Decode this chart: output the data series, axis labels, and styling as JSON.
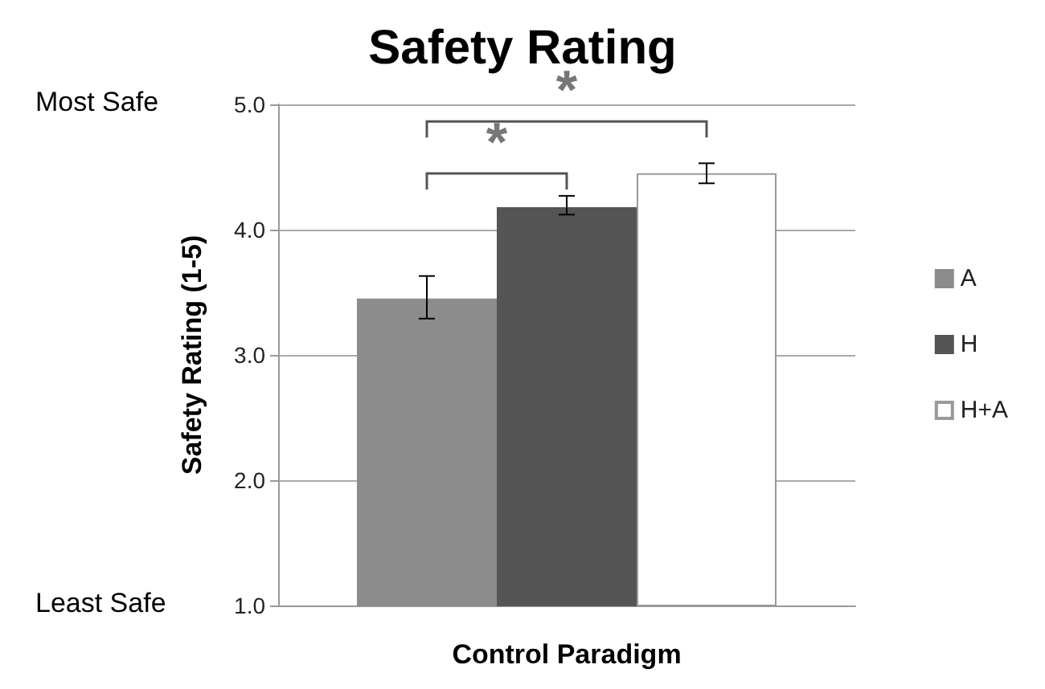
{
  "chart_data": {
    "type": "bar",
    "title": "Safety Rating",
    "xlabel": "Control Paradigm",
    "ylabel": "Safety Rating (1-5)",
    "categories": [
      null
    ],
    "series": [
      {
        "name": "A",
        "color": "#8c8c8c",
        "values": [
          3.45
        ],
        "errors": [
          [
            3.29,
            3.63
          ]
        ]
      },
      {
        "name": "H",
        "color": "#555555",
        "values": [
          4.18
        ],
        "errors": [
          [
            4.12,
            4.27
          ]
        ]
      },
      {
        "name": "H+A",
        "color": "#ffffff",
        "values": [
          4.45
        ],
        "errors": [
          [
            4.37,
            4.53
          ]
        ]
      }
    ],
    "ylim": [
      1,
      5
    ],
    "yticks": [
      {
        "value": 1,
        "label": "1.0"
      },
      {
        "value": 2,
        "label": "2.0"
      },
      {
        "value": 3,
        "label": "3.0"
      },
      {
        "value": 4,
        "label": "4.0"
      },
      {
        "value": 5,
        "label": "5.0"
      }
    ],
    "grid": "y",
    "legend": "right",
    "annotations": [
      "Most Safe",
      "Least Safe",
      "*",
      "*"
    ]
  }
}
